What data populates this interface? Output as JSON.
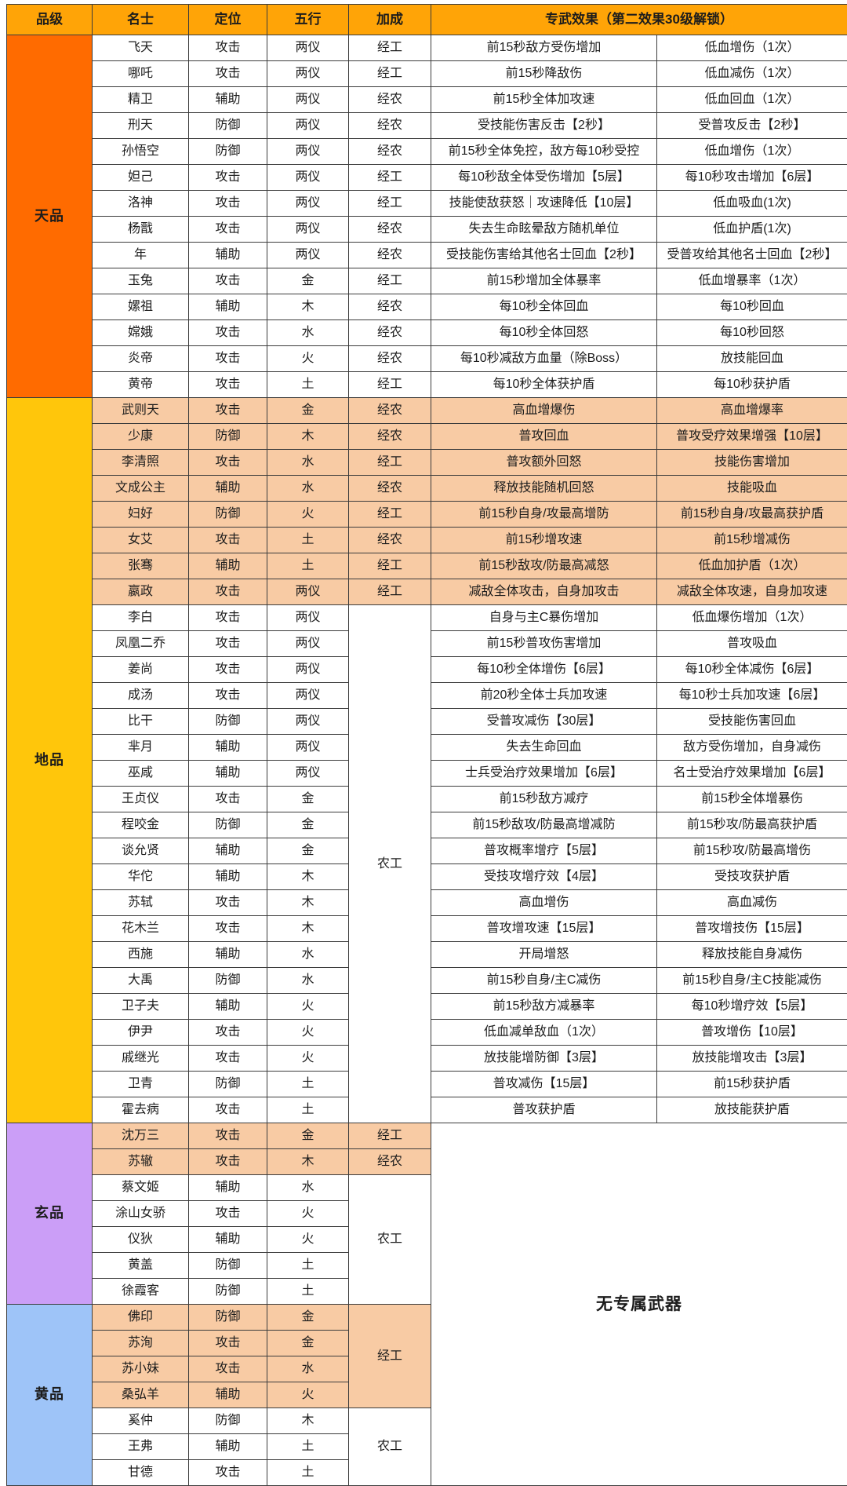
{
  "colors": {
    "header_bg": "#FFA407",
    "tier_tian": "#FF6B00",
    "tier_di": "#FFC60B",
    "tier_xuan": "#CB9EF7",
    "tier_huang": "#9EC4F8",
    "row_highlight": "#F8CBA4",
    "border": "#3C3C3C",
    "text": "#1C1C1C"
  },
  "chart_data": {
    "type": "table",
    "header": {
      "tier": "品级",
      "name": "名士",
      "role": "定位",
      "element": "五行",
      "bonus": "加成",
      "weapon": "专武效果（第二效果30级解锁）"
    },
    "no_weapon": {
      "label": "无专属武器",
      "rowspan": 14
    },
    "sections": [
      {
        "tier": "天品",
        "color_key": "tier_tian",
        "rows": [
          {
            "name": "飞天",
            "role": "攻击",
            "element": "两仪",
            "bonus": "经工",
            "effect1": "前15秒敌方受伤增加",
            "effect2": "低血增伤（1次）"
          },
          {
            "name": "哪吒",
            "role": "攻击",
            "element": "两仪",
            "bonus": "经工",
            "effect1": "前15秒降敌伤",
            "effect2": "低血减伤（1次）"
          },
          {
            "name": "精卫",
            "role": "辅助",
            "element": "两仪",
            "bonus": "经农",
            "effect1": "前15秒全体加攻速",
            "effect2": "低血回血（1次）"
          },
          {
            "name": "刑天",
            "role": "防御",
            "element": "两仪",
            "bonus": "经农",
            "effect1": "受技能伤害反击【2秒】",
            "effect2": "受普攻反击【2秒】"
          },
          {
            "name": "孙悟空",
            "role": "防御",
            "element": "两仪",
            "bonus": "经农",
            "effect1": "前15秒全体免控，敌方每10秒受控",
            "effect2": "低血增伤（1次）"
          },
          {
            "name": "妲己",
            "role": "攻击",
            "element": "两仪",
            "bonus": "经工",
            "effect1": "每10秒敌全体受伤增加【5层】",
            "effect2": "每10秒攻击增加【6层】"
          },
          {
            "name": "洛神",
            "role": "攻击",
            "element": "两仪",
            "bonus": "经工",
            "effect1": "技能使敌获怒｜攻速降低【10层】",
            "effect2": "低血吸血(1次)"
          },
          {
            "name": "杨戬",
            "role": "攻击",
            "element": "两仪",
            "bonus": "经农",
            "effect1": "失去生命眩晕敌方随机单位",
            "effect2": "低血护盾(1次)"
          },
          {
            "name": "年",
            "role": "辅助",
            "element": "两仪",
            "bonus": "经农",
            "effect1": "受技能伤害给其他名士回血【2秒】",
            "effect2": "受普攻给其他名士回血【2秒】"
          },
          {
            "name": "玉兔",
            "role": "攻击",
            "element": "金",
            "bonus": "经工",
            "effect1": "前15秒增加全体暴率",
            "effect2": "低血增暴率（1次）"
          },
          {
            "name": "嫘祖",
            "role": "辅助",
            "element": "木",
            "bonus": "经农",
            "effect1": "每10秒全体回血",
            "effect2": "每10秒回血"
          },
          {
            "name": "嫦娥",
            "role": "攻击",
            "element": "水",
            "bonus": "经农",
            "effect1": "每10秒全体回怒",
            "effect2": "每10秒回怒"
          },
          {
            "name": "炎帝",
            "role": "攻击",
            "element": "火",
            "bonus": "经农",
            "effect1": "每10秒减敌方血量（除Boss）",
            "effect2": "放技能回血"
          },
          {
            "name": "黄帝",
            "role": "攻击",
            "element": "土",
            "bonus": "经工",
            "effect1": "每10秒全体获护盾",
            "effect2": "每10秒获护盾"
          }
        ]
      },
      {
        "tier": "地品",
        "color_key": "tier_di",
        "bonus_merges": [
          {
            "from": 8,
            "count": 20,
            "label": "农工",
            "highlight": false
          }
        ],
        "rows": [
          {
            "name": "武则天",
            "role": "攻击",
            "element": "金",
            "bonus": "经农",
            "effect1": "高血增爆伤",
            "effect2": "高血增爆率",
            "highlight": true
          },
          {
            "name": "少康",
            "role": "防御",
            "element": "木",
            "bonus": "经农",
            "effect1": "普攻回血",
            "effect2": "普攻受疗效果增强【10层】",
            "highlight": true
          },
          {
            "name": "李清照",
            "role": "攻击",
            "element": "水",
            "bonus": "经工",
            "effect1": "普攻额外回怒",
            "effect2": "技能伤害增加",
            "highlight": true
          },
          {
            "name": "文成公主",
            "role": "辅助",
            "element": "水",
            "bonus": "经农",
            "effect1": "释放技能随机回怒",
            "effect2": "技能吸血",
            "highlight": true
          },
          {
            "name": "妇好",
            "role": "防御",
            "element": "火",
            "bonus": "经工",
            "effect1": "前15秒自身/攻最高增防",
            "effect2": "前15秒自身/攻最高获护盾",
            "highlight": true
          },
          {
            "name": "女艾",
            "role": "攻击",
            "element": "土",
            "bonus": "经农",
            "effect1": "前15秒增攻速",
            "effect2": "前15秒增减伤",
            "highlight": true
          },
          {
            "name": "张骞",
            "role": "辅助",
            "element": "土",
            "bonus": "经工",
            "effect1": "前15秒敌攻/防最高减怒",
            "effect2": "低血加护盾（1次）",
            "highlight": true
          },
          {
            "name": "嬴政",
            "role": "攻击",
            "element": "两仪",
            "bonus": "经工",
            "effect1": "减敌全体攻击，自身加攻击",
            "effect2": "减敌全体攻速，自身加攻速",
            "highlight": true
          },
          {
            "name": "李白",
            "role": "攻击",
            "element": "两仪",
            "effect1": "自身与主C暴伤增加",
            "effect2": "低血爆伤增加（1次）"
          },
          {
            "name": "凤凰二乔",
            "role": "攻击",
            "element": "两仪",
            "effect1": "前15秒普攻伤害增加",
            "effect2": "普攻吸血"
          },
          {
            "name": "姜尚",
            "role": "攻击",
            "element": "两仪",
            "effect1": "每10秒全体增伤【6层】",
            "effect2": "每10秒全体减伤【6层】"
          },
          {
            "name": "成汤",
            "role": "攻击",
            "element": "两仪",
            "effect1": "前20秒全体士兵加攻速",
            "effect2": "每10秒士兵加攻速【6层】"
          },
          {
            "name": "比干",
            "role": "防御",
            "element": "两仪",
            "effect1": "受普攻减伤【30层】",
            "effect2": "受技能伤害回血"
          },
          {
            "name": "芈月",
            "role": "辅助",
            "element": "两仪",
            "effect1": "失去生命回血",
            "effect2": "敌方受伤增加，自身减伤"
          },
          {
            "name": "巫咸",
            "role": "辅助",
            "element": "两仪",
            "effect1": "士兵受治疗效果增加【6层】",
            "effect2": "名士受治疗效果增加【6层】"
          },
          {
            "name": "王贞仪",
            "role": "攻击",
            "element": "金",
            "effect1": "前15秒敌方减疗",
            "effect2": "前15秒全体增暴伤"
          },
          {
            "name": "程咬金",
            "role": "防御",
            "element": "金",
            "effect1": "前15秒敌攻/防最高增减防",
            "effect2": "前15秒攻/防最高获护盾"
          },
          {
            "name": "谈允贤",
            "role": "辅助",
            "element": "金",
            "effect1": "普攻概率增疗【5层】",
            "effect2": "前15秒攻/防最高增伤"
          },
          {
            "name": "华佗",
            "role": "辅助",
            "element": "木",
            "effect1": "受技攻增疗效【4层】",
            "effect2": "受技攻获护盾"
          },
          {
            "name": "苏轼",
            "role": "攻击",
            "element": "木",
            "effect1": "高血增伤",
            "effect2": "高血减伤"
          },
          {
            "name": "花木兰",
            "role": "攻击",
            "element": "木",
            "effect1": "普攻增攻速【15层】",
            "effect2": "普攻增技伤【15层】"
          },
          {
            "name": "西施",
            "role": "辅助",
            "element": "水",
            "effect1": "开局增怒",
            "effect2": "释放技能自身减伤"
          },
          {
            "name": "大禹",
            "role": "防御",
            "element": "水",
            "effect1": "前15秒自身/主C减伤",
            "effect2": "前15秒自身/主C技能减伤"
          },
          {
            "name": "卫子夫",
            "role": "辅助",
            "element": "火",
            "effect1": "前15秒敌方减暴率",
            "effect2": "每10秒增疗效【5层】"
          },
          {
            "name": "伊尹",
            "role": "攻击",
            "element": "火",
            "effect1": "低血减单敌血（1次）",
            "effect2": "普攻增伤【10层】"
          },
          {
            "name": "戚继光",
            "role": "攻击",
            "element": "火",
            "effect1": "放技能增防御【3层】",
            "effect2": "放技能增攻击【3层】"
          },
          {
            "name": "卫青",
            "role": "防御",
            "element": "土",
            "effect1": "普攻减伤【15层】",
            "effect2": "前15秒获护盾"
          },
          {
            "name": "霍去病",
            "role": "攻击",
            "element": "土",
            "effect1": "普攻获护盾",
            "effect2": "放技能获护盾"
          }
        ]
      },
      {
        "tier": "玄品",
        "color_key": "tier_xuan",
        "bonus_merges": [
          {
            "from": 2,
            "count": 5,
            "label": "农工",
            "highlight": false
          }
        ],
        "rows": [
          {
            "name": "沈万三",
            "role": "攻击",
            "element": "金",
            "bonus": "经工",
            "highlight": true
          },
          {
            "name": "苏辙",
            "role": "攻击",
            "element": "木",
            "bonus": "经农",
            "highlight": true
          },
          {
            "name": "蔡文姬",
            "role": "辅助",
            "element": "水"
          },
          {
            "name": "涂山女骄",
            "role": "攻击",
            "element": "火"
          },
          {
            "name": "仪狄",
            "role": "辅助",
            "element": "火"
          },
          {
            "name": "黄盖",
            "role": "防御",
            "element": "土"
          },
          {
            "name": "徐霞客",
            "role": "防御",
            "element": "土"
          }
        ]
      },
      {
        "tier": "黄品",
        "color_key": "tier_huang",
        "bonus_merges": [
          {
            "from": 0,
            "count": 4,
            "label": "经工",
            "highlight": true
          },
          {
            "from": 4,
            "count": 3,
            "label": "农工",
            "highlight": false
          }
        ],
        "rows": [
          {
            "name": "佛印",
            "role": "防御",
            "element": "金",
            "highlight": true
          },
          {
            "name": "苏洵",
            "role": "攻击",
            "element": "金",
            "highlight": true
          },
          {
            "name": "苏小妹",
            "role": "攻击",
            "element": "水",
            "highlight": true
          },
          {
            "name": "桑弘羊",
            "role": "辅助",
            "element": "火",
            "highlight": true
          },
          {
            "name": "奚仲",
            "role": "防御",
            "element": "木"
          },
          {
            "name": "王弗",
            "role": "辅助",
            "element": "土"
          },
          {
            "name": "甘德",
            "role": "攻击",
            "element": "土"
          }
        ]
      }
    ]
  }
}
